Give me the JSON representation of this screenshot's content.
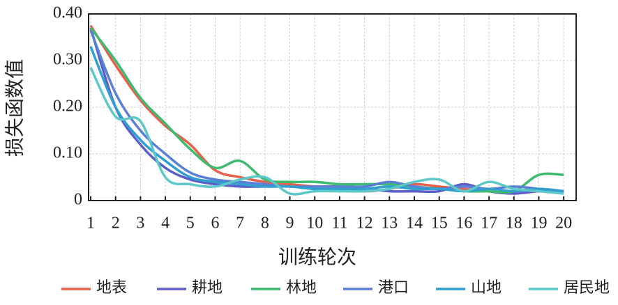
{
  "chart_data": {
    "type": "line",
    "xlabel": "训练轮次",
    "ylabel": "损失函数值",
    "x": [
      1,
      2,
      3,
      4,
      5,
      6,
      7,
      8,
      9,
      10,
      11,
      12,
      13,
      14,
      15,
      16,
      17,
      18,
      19,
      20
    ],
    "xlim": [
      1,
      20.5
    ],
    "xticks": [
      1,
      2,
      3,
      4,
      5,
      6,
      7,
      8,
      9,
      10,
      11,
      12,
      13,
      14,
      15,
      16,
      17,
      18,
      19,
      20
    ],
    "ylim": [
      0,
      0.4
    ],
    "yticks": [
      0,
      {
        "value": 0.1,
        "label": "0.10"
      },
      {
        "value": 0.2,
        "label": "0.20"
      },
      {
        "value": 0.3,
        "label": "0.30"
      },
      {
        "value": 0.4,
        "label": "0.40"
      }
    ],
    "grid": true,
    "legend": "bottom",
    "series": [
      {
        "name": "地表",
        "color": "#e8604c",
        "values": [
          0.375,
          0.29,
          0.215,
          0.16,
          0.12,
          0.065,
          0.05,
          0.04,
          0.035,
          0.03,
          0.03,
          0.02,
          0.025,
          0.035,
          0.03,
          0.025,
          0.02,
          0.02,
          0.025,
          0.02
        ]
      },
      {
        "name": "耕地",
        "color": "#5b5fc7",
        "values": [
          0.37,
          0.2,
          0.12,
          0.07,
          0.045,
          0.035,
          0.03,
          0.03,
          0.03,
          0.025,
          0.025,
          0.025,
          0.02,
          0.02,
          0.02,
          0.035,
          0.02,
          0.015,
          0.02,
          0.02
        ]
      },
      {
        "name": "林地",
        "color": "#3dbb6e",
        "values": [
          0.37,
          0.3,
          0.22,
          0.165,
          0.11,
          0.07,
          0.085,
          0.045,
          0.04,
          0.04,
          0.035,
          0.035,
          0.035,
          0.03,
          0.025,
          0.02,
          0.02,
          0.02,
          0.055,
          0.055
        ]
      },
      {
        "name": "港口",
        "color": "#5a7fd6",
        "values": [
          0.365,
          0.23,
          0.15,
          0.1,
          0.06,
          0.045,
          0.04,
          0.035,
          0.03,
          0.03,
          0.03,
          0.03,
          0.04,
          0.03,
          0.025,
          0.03,
          0.025,
          0.03,
          0.025,
          0.02
        ]
      },
      {
        "name": "山地",
        "color": "#2f9fd0",
        "values": [
          0.33,
          0.2,
          0.13,
          0.085,
          0.05,
          0.04,
          0.035,
          0.03,
          0.03,
          0.025,
          0.025,
          0.025,
          0.03,
          0.025,
          0.025,
          0.02,
          0.025,
          0.02,
          0.025,
          0.02
        ]
      },
      {
        "name": "居民地",
        "color": "#5cc8c8",
        "values": [
          0.285,
          0.18,
          0.17,
          0.05,
          0.035,
          0.03,
          0.045,
          0.05,
          0.015,
          0.02,
          0.02,
          0.02,
          0.025,
          0.04,
          0.045,
          0.02,
          0.04,
          0.025,
          0.02,
          0.015
        ]
      }
    ]
  }
}
